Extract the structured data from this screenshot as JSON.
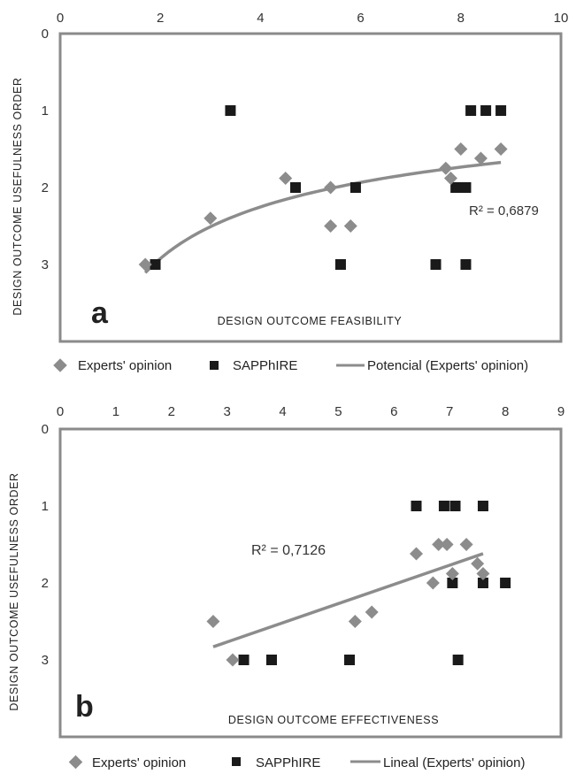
{
  "chart_data": [
    {
      "type": "scatter",
      "panel_label": "a",
      "xlabel": "DESIGN  OUTCOME  FEASIBILITY",
      "ylabel": "DESIGN  OUTCOME  USEFULNESS  ORDER",
      "xlim": [
        0,
        10
      ],
      "ylim": [
        0,
        4
      ],
      "y_inverted": true,
      "x_axis_position": "top",
      "x_ticks": [
        "0",
        "2",
        "4",
        "6",
        "8",
        "10"
      ],
      "y_ticks": [
        "0",
        "1",
        "2",
        "3"
      ],
      "series": [
        {
          "name": "Experts' opinion",
          "marker": "diamond",
          "color": "#8c8c8c",
          "points": [
            {
              "x": 1.7,
              "y": 3.0
            },
            {
              "x": 3.0,
              "y": 2.4
            },
            {
              "x": 4.5,
              "y": 1.88
            },
            {
              "x": 5.4,
              "y": 2.0
            },
            {
              "x": 5.4,
              "y": 2.5
            },
            {
              "x": 5.8,
              "y": 2.5
            },
            {
              "x": 7.7,
              "y": 1.75
            },
            {
              "x": 7.8,
              "y": 1.88
            },
            {
              "x": 8.0,
              "y": 1.5
            },
            {
              "x": 8.4,
              "y": 1.62
            },
            {
              "x": 8.8,
              "y": 1.5
            }
          ]
        },
        {
          "name": "SAPPhIRE",
          "marker": "square",
          "color": "#1a1a1a",
          "points": [
            {
              "x": 1.9,
              "y": 3.0
            },
            {
              "x": 3.4,
              "y": 1.0
            },
            {
              "x": 4.7,
              "y": 2.0
            },
            {
              "x": 5.6,
              "y": 3.0
            },
            {
              "x": 5.9,
              "y": 2.0
            },
            {
              "x": 7.5,
              "y": 3.0
            },
            {
              "x": 7.9,
              "y": 2.0
            },
            {
              "x": 8.1,
              "y": 2.0
            },
            {
              "x": 8.1,
              "y": 3.0
            },
            {
              "x": 8.2,
              "y": 1.0
            },
            {
              "x": 8.5,
              "y": 1.0
            },
            {
              "x": 8.8,
              "y": 1.0
            }
          ]
        },
        {
          "name": "Potencial (Experts' opinion)",
          "type": "power-trendline",
          "color": "#8c8c8c",
          "x_range": [
            1.7,
            8.8
          ]
        }
      ],
      "annotation": "R² = 0,6879"
    },
    {
      "type": "scatter",
      "panel_label": "b",
      "xlabel": "DESIGN  OUTCOME  EFFECTIVENESS",
      "ylabel": "DESIGN  OUTCOME  USEFULNESS  ORDER",
      "xlim": [
        0,
        9
      ],
      "ylim": [
        0,
        4
      ],
      "y_inverted": true,
      "x_axis_position": "top",
      "x_ticks": [
        "0",
        "1",
        "2",
        "3",
        "4",
        "5",
        "6",
        "7",
        "8",
        "9"
      ],
      "y_ticks": [
        "0",
        "1",
        "2",
        "3"
      ],
      "series": [
        {
          "name": "Experts' opinion",
          "marker": "diamond",
          "color": "#8c8c8c",
          "points": [
            {
              "x": 2.75,
              "y": 2.5
            },
            {
              "x": 3.1,
              "y": 3.0
            },
            {
              "x": 5.3,
              "y": 2.5
            },
            {
              "x": 5.6,
              "y": 2.38
            },
            {
              "x": 6.4,
              "y": 1.62
            },
            {
              "x": 6.7,
              "y": 2.0
            },
            {
              "x": 6.8,
              "y": 1.5
            },
            {
              "x": 6.95,
              "y": 1.5
            },
            {
              "x": 7.05,
              "y": 1.88
            },
            {
              "x": 7.3,
              "y": 1.5
            },
            {
              "x": 7.5,
              "y": 1.75
            },
            {
              "x": 7.6,
              "y": 1.88
            }
          ]
        },
        {
          "name": "SAPPhIRE",
          "marker": "square",
          "color": "#1a1a1a",
          "points": [
            {
              "x": 3.3,
              "y": 3.0
            },
            {
              "x": 3.8,
              "y": 3.0
            },
            {
              "x": 5.2,
              "y": 3.0
            },
            {
              "x": 6.4,
              "y": 1.0
            },
            {
              "x": 6.9,
              "y": 1.0
            },
            {
              "x": 7.1,
              "y": 1.0
            },
            {
              "x": 7.05,
              "y": 2.0
            },
            {
              "x": 7.15,
              "y": 3.0
            },
            {
              "x": 7.6,
              "y": 1.0
            },
            {
              "x": 7.6,
              "y": 2.0
            },
            {
              "x": 8.0,
              "y": 2.0
            }
          ]
        },
        {
          "name": "Lineal (Experts' opinion)",
          "type": "linear-trendline",
          "color": "#8c8c8c",
          "from": {
            "x": 2.75,
            "y": 2.83
          },
          "to": {
            "x": 7.6,
            "y": 1.62
          }
        }
      ],
      "annotation": "R² = 0,7126"
    }
  ]
}
